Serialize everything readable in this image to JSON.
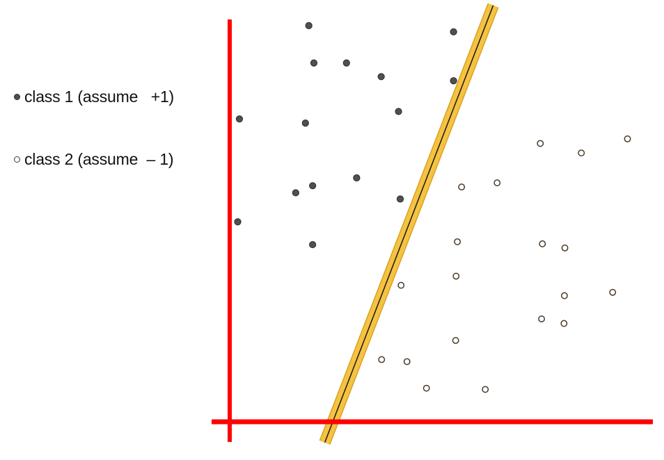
{
  "chart_data": {
    "type": "scatter",
    "title": "",
    "xlabel": "",
    "ylabel": "",
    "xlim": [
      0,
      100
    ],
    "ylim": [
      0,
      100
    ],
    "grid": false,
    "legend_placement": "top-left",
    "legend": [
      {
        "marker": "filled",
        "label": "class 1 (assume   +1)"
      },
      {
        "marker": "hollow",
        "label": "class 2 (assume  – 1)"
      }
    ],
    "axis_color": "#ff0000",
    "boundary_band_color": "#f5c242",
    "boundary_line_color": "#1a1a1a",
    "filled_color": "#505050",
    "hollow_edge_color": "#4a3a2a",
    "decision_boundary": {
      "points": [
        [
          24.7,
          0.9
        ],
        [
          61.9,
          99.4
        ]
      ]
    },
    "series": [
      {
        "name": "class 1 (assume +1)",
        "marker": "filled",
        "points": [
          [
            18.7,
            95.5
          ],
          [
            52.9,
            94.0
          ],
          [
            19.9,
            86.5
          ],
          [
            27.6,
            86.5
          ],
          [
            35.8,
            83.2
          ],
          [
            52.9,
            82.2
          ],
          [
            2.3,
            73.0
          ],
          [
            17.9,
            72.0
          ],
          [
            39.9,
            74.8
          ],
          [
            15.6,
            55.2
          ],
          [
            19.6,
            56.9
          ],
          [
            30.0,
            58.8
          ],
          [
            40.3,
            53.7
          ],
          [
            1.9,
            48.2
          ],
          [
            19.6,
            42.7
          ]
        ]
      },
      {
        "name": "class 2 (assume – 1)",
        "marker": "hollow",
        "points": [
          [
            73.4,
            67.1
          ],
          [
            94.0,
            68.2
          ],
          [
            83.1,
            64.8
          ],
          [
            54.8,
            56.6
          ],
          [
            63.2,
            57.6
          ],
          [
            53.8,
            43.4
          ],
          [
            73.9,
            42.9
          ],
          [
            79.2,
            41.9
          ],
          [
            40.5,
            32.9
          ],
          [
            53.5,
            35.1
          ],
          [
            79.1,
            30.4
          ],
          [
            90.5,
            31.2
          ],
          [
            73.7,
            24.8
          ],
          [
            79.0,
            23.7
          ],
          [
            53.4,
            19.6
          ],
          [
            35.9,
            15.0
          ],
          [
            41.9,
            14.5
          ],
          [
            46.5,
            8.1
          ],
          [
            60.4,
            7.8
          ]
        ]
      }
    ]
  }
}
